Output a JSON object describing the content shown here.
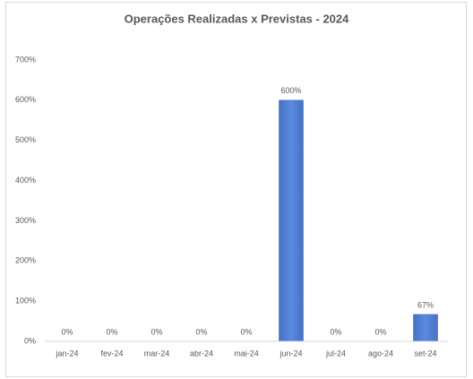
{
  "chart_data": {
    "type": "bar",
    "title": "Operações Realizadas x Previstas - 2024",
    "categories": [
      "jan-24",
      "fev-24",
      "mar-24",
      "abr-24",
      "mai-24",
      "jun-24",
      "jul-24",
      "ago-24",
      "set-24"
    ],
    "values": [
      0,
      0,
      0,
      0,
      0,
      600,
      0,
      0,
      67
    ],
    "value_labels": [
      "0%",
      "0%",
      "0%",
      "0%",
      "0%",
      "600%",
      "0%",
      "0%",
      "67%"
    ],
    "color": "#4472c4",
    "ylim": [
      0,
      700
    ],
    "yticks": [
      {
        "value": 0,
        "label": "0%"
      },
      {
        "value": 100,
        "label": "100%"
      },
      {
        "value": 200,
        "label": "200%"
      },
      {
        "value": 300,
        "label": "300%"
      },
      {
        "value": 400,
        "label": "400%"
      },
      {
        "value": 500,
        "label": "500%"
      },
      {
        "value": 600,
        "label": "600%"
      },
      {
        "value": 700,
        "label": "700%"
      }
    ],
    "grid": false
  }
}
